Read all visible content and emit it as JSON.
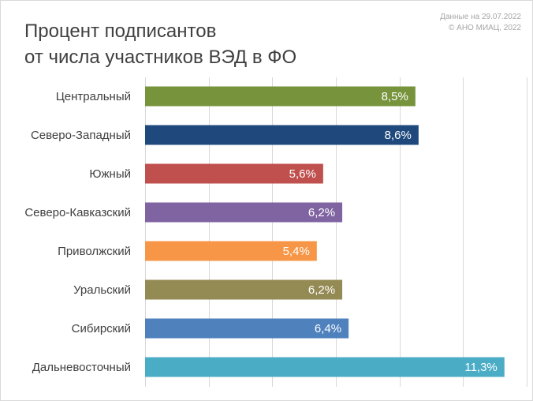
{
  "title": {
    "line1": "Процент подписантов",
    "line2": "от числа участников ВЭД в ФО"
  },
  "source": {
    "line1": "Данные на 29.07.2022",
    "line2": "© АНО МИАЦ, 2022"
  },
  "chart_data": {
    "type": "bar",
    "orientation": "horizontal",
    "title": "Процент подписантов от числа участников ВЭД в ФО",
    "categories": [
      "Центральный",
      "Северо-Западный",
      "Южный",
      "Северо-Кавказский",
      "Приволжский",
      "Уральский",
      "Сибирский",
      "Дальневосточный"
    ],
    "values": [
      8.5,
      8.6,
      5.6,
      6.2,
      5.4,
      6.2,
      6.4,
      11.3
    ],
    "value_labels": [
      "8,5%",
      "8,6%",
      "5,6%",
      "6,2%",
      "5,4%",
      "6,2%",
      "6,4%",
      "11,3%"
    ],
    "colors": [
      "#77933c",
      "#1f497d",
      "#c0504d",
      "#8064a2",
      "#f79646",
      "#948a54",
      "#4f81bd",
      "#4bacc6"
    ],
    "xlim": [
      0,
      12
    ],
    "grid": true,
    "legend": "none"
  }
}
